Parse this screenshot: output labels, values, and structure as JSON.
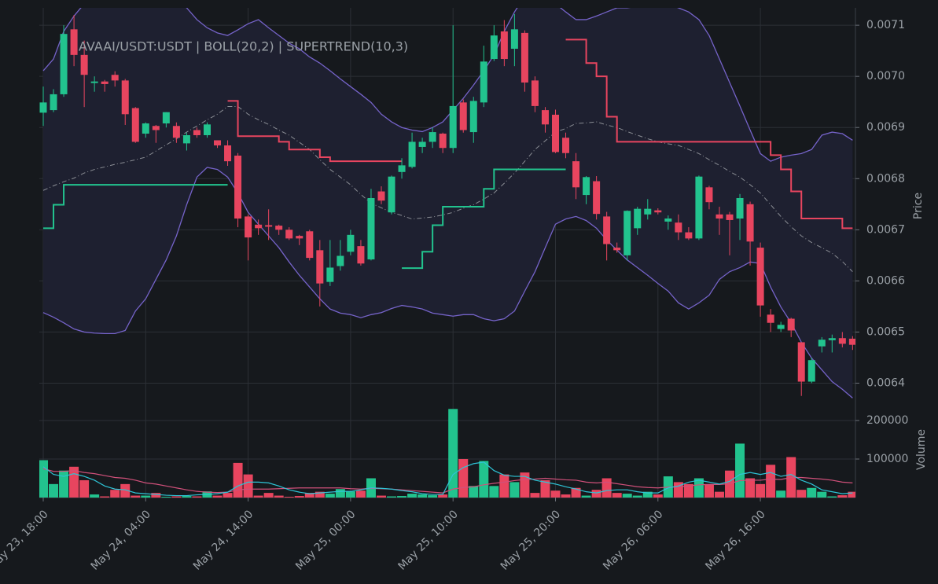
{
  "chart_data": [
    {
      "type": "candlestick",
      "title": "AVAAI/USDT:USDT | BOLL(20,2) | SUPERTREND(10,3)",
      "ylabel": "Price",
      "up_color": "#22c38e",
      "down_color": "#e8455f",
      "open": [
        0.006929,
        0.006934,
        0.006965,
        0.007092,
        0.007042,
        0.006987,
        0.00699,
        0.007003,
        0.006992,
        0.006938,
        0.006888,
        0.006903,
        0.006908,
        0.006903,
        0.006869,
        0.006895,
        0.006885,
        0.006875,
        0.006865,
        0.006845,
        0.006726,
        0.00671,
        0.006709,
        0.006708,
        0.0067,
        0.006688,
        0.006697,
        0.00666,
        0.006598,
        0.006629,
        0.006657,
        0.006668,
        0.006642,
        0.006775,
        0.006734,
        0.006813,
        0.006823,
        0.006862,
        0.006872,
        0.006888,
        0.00686,
        0.006949,
        0.006891,
        0.006949,
        0.007034,
        0.007088,
        0.007054,
        0.007085,
        0.006992,
        0.006934,
        0.006925,
        0.00688,
        0.006834,
        0.006768,
        0.006795,
        0.006726,
        0.006665,
        0.00665,
        0.006703,
        0.00673,
        0.006738,
        0.006716,
        0.006714,
        0.006695,
        0.006683,
        0.006783,
        0.00673,
        0.00673,
        0.006722,
        0.00675,
        0.006665,
        0.006534,
        0.006506,
        0.006526,
        0.00648,
        0.006403,
        0.006472,
        0.006484,
        0.006488,
        0.006487
      ],
      "high": [
        0.00698,
        0.006975,
        0.0071,
        0.00712,
        0.00707,
        0.007,
        0.006993,
        0.00701,
        0.006995,
        0.00694,
        0.00691,
        0.006905,
        0.00693,
        0.00691,
        0.00689,
        0.0069,
        0.00691,
        0.006875,
        0.006875,
        0.00685,
        0.00673,
        0.00672,
        0.00674,
        0.00671,
        0.006705,
        0.00669,
        0.0067,
        0.00668,
        0.00668,
        0.00668,
        0.0067,
        0.00668,
        0.00678,
        0.006785,
        0.006806,
        0.00684,
        0.00689,
        0.00688,
        0.0069,
        0.00689,
        0.0071,
        0.006955,
        0.00696,
        0.00706,
        0.0071,
        0.00711,
        0.007122,
        0.00709,
        0.007,
        0.00694,
        0.006935,
        0.00689,
        0.00685,
        0.006805,
        0.006805,
        0.006735,
        0.006675,
        0.006738,
        0.006745,
        0.00676,
        0.006742,
        0.006728,
        0.00673,
        0.006705,
        0.006806,
        0.006786,
        0.006745,
        0.006735,
        0.00677,
        0.006755,
        0.006675,
        0.006545,
        0.00652,
        0.006528,
        0.00648,
        0.00645,
        0.00649,
        0.006495,
        0.0065,
        0.006492
      ],
      "low": [
        0.006903,
        0.00693,
        0.00696,
        0.00702,
        0.00694,
        0.00697,
        0.00697,
        0.00698,
        0.006905,
        0.00687,
        0.00688,
        0.00687,
        0.0069,
        0.00687,
        0.006855,
        0.00688,
        0.00688,
        0.00686,
        0.006825,
        0.006705,
        0.00664,
        0.00669,
        0.00668,
        0.00669,
        0.00668,
        0.00667,
        0.00664,
        0.00655,
        0.00659,
        0.00662,
        0.00665,
        0.00663,
        0.00664,
        0.00675,
        0.00673,
        0.0068,
        0.00682,
        0.00685,
        0.00686,
        0.00685,
        0.00685,
        0.00689,
        0.00687,
        0.00694,
        0.00703,
        0.00702,
        0.00702,
        0.00697,
        0.00693,
        0.00689,
        0.00685,
        0.00684,
        0.00676,
        0.00675,
        0.00672,
        0.00664,
        0.006655,
        0.00664,
        0.00669,
        0.00672,
        0.00673,
        0.0067,
        0.00668,
        0.00668,
        0.00668,
        0.00674,
        0.00669,
        0.00665,
        0.00668,
        0.00663,
        0.00653,
        0.0065,
        0.0065,
        0.00649,
        0.006375,
        0.0064,
        0.00646,
        0.00646,
        0.00647,
        0.006465
      ],
      "close": [
        0.006949,
        0.006965,
        0.007083,
        0.007042,
        0.007003,
        0.00699,
        0.006985,
        0.006992,
        0.006926,
        0.006872,
        0.006908,
        0.006895,
        0.00693,
        0.00688,
        0.006885,
        0.006885,
        0.006906,
        0.006865,
        0.006834,
        0.006722,
        0.006685,
        0.006703,
        0.006706,
        0.0067,
        0.006683,
        0.006683,
        0.006645,
        0.006595,
        0.006626,
        0.006649,
        0.00669,
        0.006634,
        0.006762,
        0.006757,
        0.006804,
        0.006826,
        0.006872,
        0.006872,
        0.006891,
        0.00686,
        0.006942,
        0.006895,
        0.006952,
        0.007029,
        0.00708,
        0.007034,
        0.007092,
        0.006988,
        0.006942,
        0.006906,
        0.006852,
        0.00685,
        0.006783,
        0.006803,
        0.006731,
        0.006672,
        0.00666,
        0.006737,
        0.006741,
        0.006741,
        0.006734,
        0.006722,
        0.006695,
        0.006683,
        0.006804,
        0.006754,
        0.006722,
        0.006719,
        0.006762,
        0.006677,
        0.006552,
        0.006518,
        0.006514,
        0.006503,
        0.006403,
        0.006445,
        0.006485,
        0.006488,
        0.006477,
        0.006475
      ],
      "bollinger": {
        "color": "#7563c9",
        "middle_color": "#8a8d94",
        "fill": "#1e2030",
        "upper": [
          0.007011,
          0.007034,
          0.007088,
          0.007118,
          0.007142,
          0.007157,
          0.007172,
          0.00718,
          0.007188,
          0.007188,
          0.007183,
          0.007177,
          0.007165,
          0.007152,
          0.007134,
          0.007111,
          0.007095,
          0.007085,
          0.00708,
          0.007091,
          0.007103,
          0.007111,
          0.007095,
          0.00708,
          0.007065,
          0.007054,
          0.007038,
          0.007026,
          0.007011,
          0.006995,
          0.00698,
          0.006965,
          0.006949,
          0.006926,
          0.006911,
          0.0069,
          0.006895,
          0.006892,
          0.0069,
          0.006911,
          0.006934,
          0.006957,
          0.006983,
          0.007011,
          0.007042,
          0.007088,
          0.007126,
          0.007157,
          0.007172,
          0.007157,
          0.007142,
          0.007126,
          0.007111,
          0.007111,
          0.007118,
          0.007126,
          0.007134,
          0.007134,
          0.007137,
          0.007142,
          0.007145,
          0.007142,
          0.007134,
          0.007126,
          0.007111,
          0.00708,
          0.007034,
          0.006988,
          0.006942,
          0.006895,
          0.006849,
          0.006834,
          0.006842,
          0.006846,
          0.006849,
          0.006857,
          0.006885,
          0.006891,
          0.006888,
          0.006875
        ],
        "middle": [
          0.006777,
          0.006786,
          0.006794,
          0.006801,
          0.006811,
          0.006818,
          0.006823,
          0.006828,
          0.006832,
          0.006837,
          0.006842,
          0.006854,
          0.006866,
          0.006878,
          0.006891,
          0.006903,
          0.006915,
          0.006926,
          0.006941,
          0.006941,
          0.006926,
          0.006915,
          0.006906,
          0.006895,
          0.006885,
          0.006871,
          0.006857,
          0.006837,
          0.006818,
          0.006803,
          0.006788,
          0.006769,
          0.006752,
          0.006743,
          0.006734,
          0.006728,
          0.006721,
          0.006723,
          0.006725,
          0.006729,
          0.006734,
          0.006742,
          0.006749,
          0.00676,
          0.006772,
          0.006791,
          0.006811,
          0.006834,
          0.006857,
          0.006874,
          0.006891,
          0.006898,
          0.006908,
          0.006909,
          0.006911,
          0.006905,
          0.0069,
          0.006892,
          0.006885,
          0.006878,
          0.006872,
          0.006868,
          0.006865,
          0.006857,
          0.006849,
          0.006837,
          0.006826,
          0.006814,
          0.006803,
          0.006788,
          0.006772,
          0.006749,
          0.006726,
          0.006706,
          0.006688,
          0.006675,
          0.006665,
          0.006654,
          0.006638,
          0.006618
        ],
        "lower": [
          0.006538,
          0.006529,
          0.006518,
          0.006506,
          0.0065,
          0.006498,
          0.006497,
          0.006497,
          0.006503,
          0.006541,
          0.006565,
          0.006603,
          0.006641,
          0.006688,
          0.006749,
          0.006803,
          0.006822,
          0.006818,
          0.006803,
          0.006772,
          0.006734,
          0.006711,
          0.006688,
          0.006665,
          0.006637,
          0.006611,
          0.006588,
          0.006565,
          0.006545,
          0.006537,
          0.006534,
          0.006528,
          0.006534,
          0.006538,
          0.006546,
          0.006552,
          0.006549,
          0.006545,
          0.006537,
          0.006534,
          0.006531,
          0.006534,
          0.006534,
          0.006526,
          0.006522,
          0.006526,
          0.006541,
          0.00658,
          0.006618,
          0.006665,
          0.006711,
          0.006721,
          0.006726,
          0.006718,
          0.006703,
          0.00668,
          0.00666,
          0.006641,
          0.006626,
          0.006611,
          0.006595,
          0.00658,
          0.006557,
          0.006545,
          0.006557,
          0.006572,
          0.006603,
          0.006618,
          0.006626,
          0.006637,
          0.006634,
          0.006588,
          0.006549,
          0.006518,
          0.00648,
          0.006449,
          0.006426,
          0.006403,
          0.006388,
          0.006371
        ]
      },
      "supertrend": {
        "up_color": "#22c38e",
        "down_color": "#e8455f",
        "up": [
          0.006703,
          0.006749,
          0.006788,
          0.006788,
          0.006788,
          0.006788,
          0.006788,
          0.006788,
          0.006788,
          0.006788,
          0.006788,
          0.006788,
          0.006788,
          0.006788,
          0.006788,
          0.006788,
          0.006788,
          0.006788,
          0.006788,
          null,
          null,
          null,
          null,
          null,
          null,
          null,
          null,
          null,
          null,
          null,
          null,
          null,
          null,
          null,
          null,
          0.006625,
          0.006625,
          0.006657,
          0.006709,
          0.006745,
          0.006745,
          0.006745,
          0.006745,
          0.00678,
          0.006818,
          0.006818,
          0.006818,
          0.006818,
          0.006818,
          0.006818,
          0.006818,
          0.006818,
          null,
          null,
          null,
          null,
          null,
          null,
          null,
          null,
          null,
          null,
          null,
          null,
          null,
          null,
          null,
          null,
          null,
          null,
          null,
          null,
          null,
          null,
          null,
          null,
          null,
          null,
          null,
          null
        ],
        "down": [
          null,
          null,
          null,
          null,
          null,
          null,
          null,
          null,
          null,
          null,
          null,
          null,
          null,
          null,
          null,
          null,
          null,
          null,
          0.006952,
          0.006883,
          0.006883,
          0.006883,
          0.006883,
          0.006872,
          0.006857,
          0.006857,
          0.006857,
          0.006842,
          0.006834,
          0.006834,
          0.006834,
          0.006834,
          0.006834,
          0.006834,
          0.006834,
          0.006834,
          null,
          null,
          null,
          null,
          null,
          null,
          null,
          null,
          null,
          null,
          null,
          null,
          null,
          null,
          null,
          0.007072,
          0.007072,
          0.007026,
          0.007,
          0.006921,
          0.006872,
          0.006872,
          0.006872,
          0.006872,
          0.006872,
          0.006872,
          0.006872,
          0.006872,
          0.006872,
          0.006872,
          0.006872,
          0.006872,
          0.006872,
          0.006872,
          0.006872,
          0.006846,
          0.006818,
          0.006775,
          0.006722,
          0.006722,
          0.006722,
          0.006722,
          0.006703,
          0.006703
        ]
      },
      "ylim": [
        0.00635,
        0.007134
      ],
      "yticks": [
        0.0064,
        0.0065,
        0.0066,
        0.0067,
        0.0068,
        0.0069,
        {
          "value": 0.007,
          "label": "0.0070"
        },
        0.0071
      ],
      "grid": true
    },
    {
      "type": "bar",
      "ylabel": "Volume",
      "categories": [
        "May 23, 18:00",
        null,
        null,
        null,
        null,
        null,
        null,
        null,
        null,
        null,
        "May 24, 04:00",
        null,
        null,
        null,
        null,
        null,
        null,
        null,
        null,
        null,
        "May 24, 14:00",
        null,
        null,
        null,
        null,
        null,
        null,
        null,
        null,
        null,
        "May 25, 00:00",
        null,
        null,
        null,
        null,
        null,
        null,
        null,
        null,
        null,
        "May 25, 10:00",
        null,
        null,
        null,
        null,
        null,
        null,
        null,
        null,
        null,
        "May 25, 20:00",
        null,
        null,
        null,
        null,
        null,
        null,
        null,
        null,
        null,
        "May 26, 06:00",
        null,
        null,
        null,
        null,
        null,
        null,
        null,
        null,
        null,
        "May 26, 16:00",
        null,
        null,
        null,
        null,
        null,
        null,
        null,
        null,
        null
      ],
      "values": [
        97000,
        35000,
        70000,
        80000,
        45000,
        8000,
        3000,
        20000,
        35000,
        5000,
        5000,
        12000,
        2000,
        3000,
        4000,
        3000,
        16000,
        5000,
        12000,
        90000,
        60000,
        5000,
        12000,
        5000,
        2000,
        4000,
        12000,
        15000,
        10000,
        22000,
        16000,
        18000,
        50000,
        5000,
        3000,
        4000,
        10000,
        8000,
        6000,
        8000,
        230000,
        100000,
        30000,
        95000,
        30000,
        60000,
        40000,
        65000,
        12000,
        45000,
        18000,
        8000,
        25000,
        5000,
        20000,
        50000,
        12000,
        10000,
        5000,
        15000,
        8000,
        55000,
        40000,
        35000,
        50000,
        35000,
        15000,
        70000,
        140000,
        50000,
        35000,
        85000,
        18000,
        105000,
        20000,
        25000,
        15000,
        3000,
        6000,
        15000
      ],
      "ma_slow": {
        "color": "#d0507a",
        "values": [
          75000,
          68000,
          68000,
          70000,
          65000,
          62000,
          57000,
          52000,
          50000,
          45000,
          38000,
          35000,
          30000,
          25000,
          20000,
          16000,
          14000,
          13000,
          14000,
          20000,
          22000,
          22000,
          22000,
          23000,
          24000,
          25000,
          25000,
          25000,
          25000,
          25000,
          23000,
          22000,
          24000,
          23000,
          22000,
          20000,
          18000,
          16000,
          14000,
          12000,
          22000,
          26000,
          28000,
          33000,
          37000,
          40000,
          44000,
          47000,
          48000,
          50000,
          48000,
          46000,
          45000,
          40000,
          38000,
          40000,
          36000,
          32000,
          28000,
          26000,
          25000,
          27000,
          28000,
          30000,
          33000,
          34000,
          34000,
          36000,
          44000,
          45000,
          45000,
          48000,
          47000,
          52000,
          52000,
          50000,
          48000,
          45000,
          40000,
          38000
        ]
      },
      "ma_fast": {
        "color": "#2ec4d6",
        "values": [
          80000,
          60000,
          55000,
          62000,
          55000,
          45000,
          30000,
          22000,
          20000,
          12000,
          10000,
          8000,
          6000,
          5000,
          5000,
          7000,
          8000,
          10000,
          14000,
          30000,
          40000,
          40000,
          38000,
          30000,
          20000,
          14000,
          10000,
          12000,
          14000,
          16000,
          16000,
          20000,
          25000,
          24000,
          22000,
          18000,
          15000,
          10000,
          8000,
          8000,
          60000,
          78000,
          88000,
          92000,
          70000,
          58000,
          55000,
          55000,
          45000,
          40000,
          35000,
          28000,
          22000,
          15000,
          12000,
          18000,
          20000,
          20000,
          15000,
          12000,
          12000,
          25000,
          30000,
          40000,
          45000,
          40000,
          35000,
          42000,
          60000,
          65000,
          60000,
          65000,
          55000,
          60000,
          45000,
          35000,
          20000,
          15000,
          10000,
          12000
        ]
      },
      "ylim": [
        0,
        230600
      ],
      "yticks": [
        100000,
        200000
      ],
      "grid": true
    }
  ]
}
